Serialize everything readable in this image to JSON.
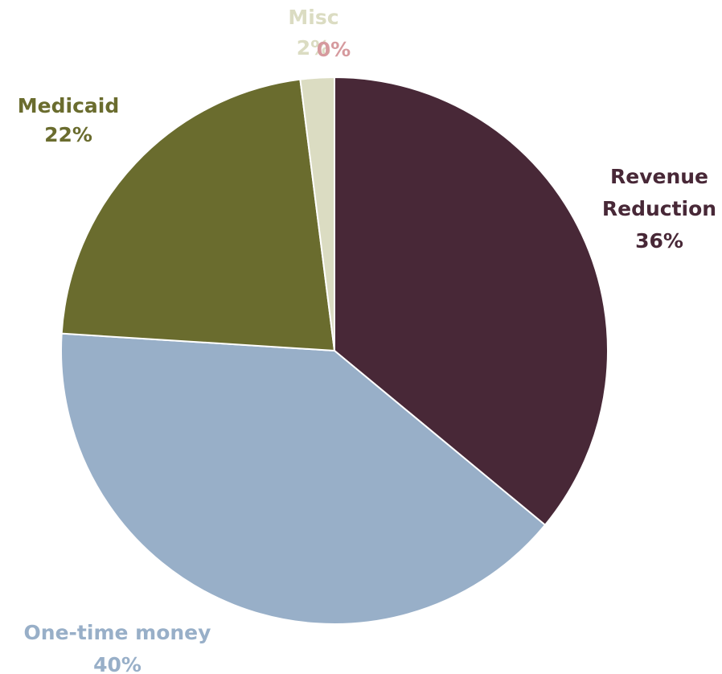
{
  "chart_data": {
    "type": "pie",
    "title": "",
    "slices": [
      {
        "label": "Revenue Reduction",
        "label_lines": [
          "Revenue",
          "Reduction"
        ],
        "value": 36,
        "value_label": "36%",
        "color": "#482837"
      },
      {
        "label": "One-time money",
        "label_lines": [
          "One-time money"
        ],
        "value": 40,
        "value_label": "40%",
        "color": "#98AFC8"
      },
      {
        "label": "Medicaid",
        "label_lines": [
          "Medicaid"
        ],
        "value": 22,
        "value_label": "22%",
        "color": "#6A6C2E"
      },
      {
        "label": "Misc",
        "label_lines": [
          "Misc"
        ],
        "value": 2,
        "value_label": "2%",
        "color": "#DBDCC2"
      },
      {
        "label": "",
        "label_lines": [],
        "value": 0,
        "value_label": "0%",
        "color": "#D69A9E"
      }
    ],
    "start_angle": "12 o'clock",
    "direction": "clockwise",
    "legend": "none"
  }
}
